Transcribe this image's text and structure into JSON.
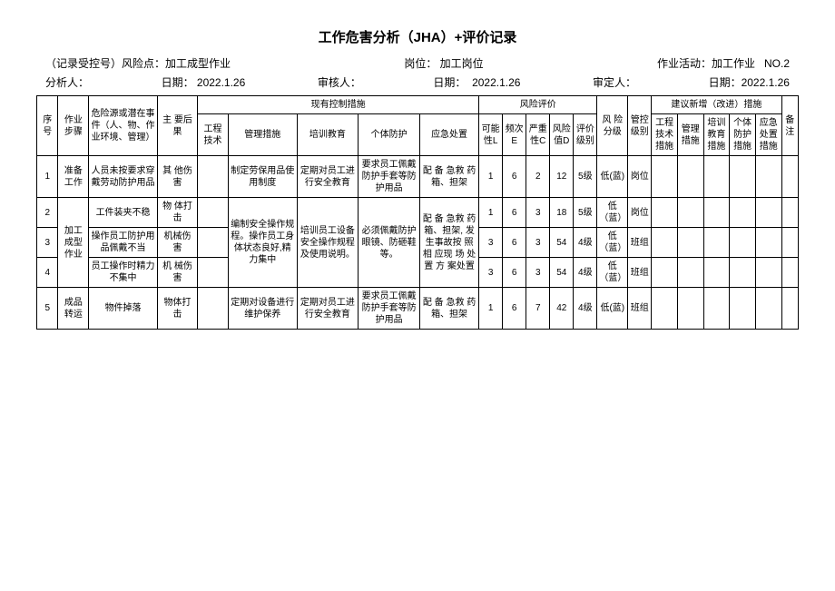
{
  "title": "工作危害分析（JHA）+评价记录",
  "meta1": {
    "record_no": "（记录受控号）风险点：加工成型作业",
    "post": "岗位： 加工岗位",
    "activity": "作业活动：加工作业   NO.2"
  },
  "meta2": {
    "analyst": "分析人：",
    "date1": "日期： 2022.1.26",
    "auditor": "审核人：",
    "date2": "日期：  2022.1.26",
    "approver": "审定人：",
    "date3": "日期：2022.1.26"
  },
  "headers": {
    "seq": "序号",
    "step": "作业步骤",
    "hazard": "危险源或潜在事件（人、物、作业环境、管理）",
    "conseq": "主 要后果",
    "existing": "现有控制措施",
    "eng": "工程技术",
    "mgmt": "管理措施",
    "train": "培训教育",
    "ppe": "个体防护",
    "emerg": "应急处置",
    "riskeval": "风险评价",
    "L": "可能性L",
    "E": "频次E",
    "C": "严重性C",
    "D": "风险值D",
    "grade": "评价级别",
    "risklv": "风 险分级",
    "ctrl": "管控级别",
    "suggest": "建议新增（改进）措施",
    "s_eng": "工程技术措施",
    "s_mgmt": "管理措施",
    "s_train": "培训教育措施",
    "s_ppe": "个体防护措施",
    "s_emerg": "应急处置措施",
    "note": "备注"
  },
  "rows": [
    {
      "seq": "1",
      "step": "准备工作",
      "hazard": "人员未按要求穿戴劳动防护用品",
      "conseq": "其 他伤害",
      "eng": "",
      "mgmt": "制定劳保用品使用制度",
      "train": "定期对员工进行安全教育",
      "ppe": "要求员工佩戴防护手套等防护用品",
      "emerg": "配 备 急救 药 箱、担架",
      "L": "1",
      "E": "6",
      "C": "2",
      "D": "12",
      "grade": "5级",
      "risklv": "低(蓝)",
      "ctrl": "岗位"
    },
    {
      "seq": "2",
      "step": "",
      "hazard": "工件装夹不稳",
      "conseq": "物 体打击",
      "eng": "",
      "mgmt": "",
      "train": "",
      "ppe": "",
      "emerg": "",
      "L": "1",
      "E": "6",
      "C": "3",
      "D": "18",
      "grade": "5级",
      "risklv": "低（蓝）",
      "ctrl": "岗位"
    },
    {
      "seq": "3",
      "step": "加工成型作业",
      "hazard": "操作员工防护用品佩戴不当",
      "conseq": "机械伤害",
      "eng": "",
      "mgmt": "编制安全操作规程。操作员工身体状态良好,精力集中",
      "train": "培训员工设备安全操作规程及使用说明。",
      "ppe": "必须佩戴防护眼镜、防砸鞋等。",
      "emerg": "配 备 急救 药 箱、担架, 发生事故按 照 相 应现 场 处置 方 案处置",
      "L": "3",
      "E": "6",
      "C": "3",
      "D": "54",
      "grade": "4级",
      "risklv": "低（蓝）",
      "ctrl": "班组"
    },
    {
      "seq": "4",
      "step": "",
      "hazard": "员工操作时精力不集中",
      "conseq": "机 械伤害",
      "eng": "",
      "mgmt": "",
      "train": "",
      "ppe": "",
      "emerg": "",
      "L": "3",
      "E": "6",
      "C": "3",
      "D": "54",
      "grade": "4级",
      "risklv": "低（蓝）",
      "ctrl": "班组"
    },
    {
      "seq": "5",
      "step": "成品转运",
      "hazard": "物件掉落",
      "conseq": "物体打击",
      "eng": "",
      "mgmt": "定期对设备进行维护保养",
      "train": "定期对员工进行安全教育",
      "ppe": "要求员工佩戴防护手套等防护用品",
      "emerg": "配 备 急救 药 箱、担架",
      "L": "1",
      "E": "6",
      "C": "7",
      "D": "42",
      "grade": "4级",
      "risklv": "低(蓝)",
      "ctrl": "班组"
    }
  ]
}
